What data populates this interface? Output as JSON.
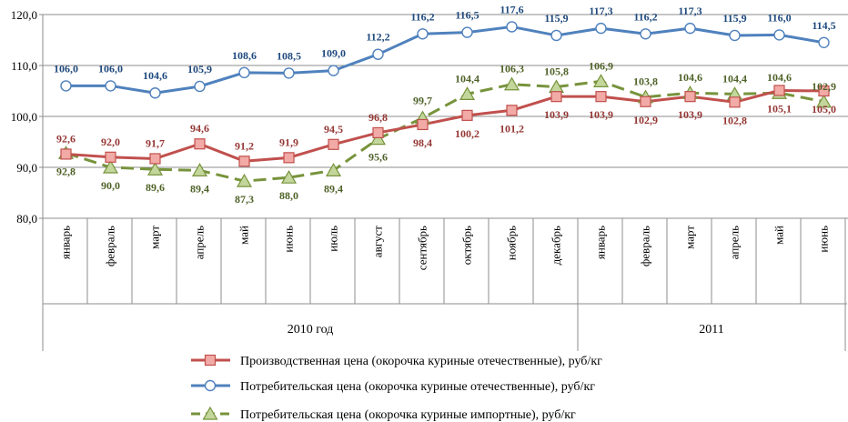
{
  "chart_data": {
    "type": "line",
    "categories": [
      "январь",
      "февраль",
      "март",
      "апрель",
      "май",
      "июнь",
      "июль",
      "август",
      "сентябрь",
      "октябрь",
      "ноябрь",
      "декабрь",
      "январь",
      "февраль",
      "март",
      "апрель",
      "май",
      "июнь"
    ],
    "groups": [
      {
        "label": "2010 год",
        "count": 12
      },
      {
        "label": "2011",
        "count": 6
      }
    ],
    "ylim": [
      80,
      120
    ],
    "yticks": [
      "80,0",
      "90,0",
      "100,0",
      "110,0",
      "120,0"
    ],
    "grid": true,
    "legend_position": "bottom",
    "series": [
      {
        "name": "Производственная цена (окорочка куриные отечественные), руб/кг",
        "values": [
          92.6,
          92.0,
          91.7,
          94.6,
          91.2,
          91.9,
          94.5,
          96.8,
          98.4,
          100.2,
          101.2,
          103.9,
          103.9,
          102.9,
          103.9,
          102.8,
          105.1,
          105.0
        ],
        "labels": [
          "92,6",
          "92,0",
          "91,7",
          "94,6",
          "91,2",
          "91,9",
          "94,5",
          "96,8",
          "98,4",
          "100,2",
          "101,2",
          "103,9",
          "103,9",
          "102,9",
          "103,9",
          "102,8",
          "105,1",
          "105,0"
        ],
        "color": "#c0504d",
        "marker_fill": "#f2aaa6",
        "label_color": "#953735",
        "marker": "square",
        "dash": false
      },
      {
        "name": "Потребительская цена (окорочка куриные отечественные), руб/кг",
        "values": [
          106.0,
          106.0,
          104.6,
          105.9,
          108.6,
          108.5,
          109.0,
          112.2,
          116.2,
          116.5,
          117.6,
          115.9,
          117.3,
          116.2,
          117.3,
          115.9,
          116.0,
          114.5
        ],
        "labels": [
          "106,0",
          "106,0",
          "104,6",
          "105,9",
          "108,6",
          "108,5",
          "109,0",
          "112,2",
          "116,2",
          "116,5",
          "117,6",
          "115,9",
          "117,3",
          "116,2",
          "117,3",
          "115,9",
          "116,0",
          "114,5"
        ],
        "color": "#4f81bd",
        "marker_fill": "#ffffff",
        "label_color": "#1f497d",
        "marker": "circle",
        "dash": false
      },
      {
        "name": "Потребительская цена (окорочка куриные импортные), руб/кг",
        "values": [
          92.8,
          90.0,
          89.6,
          89.4,
          87.3,
          88.0,
          89.4,
          95.6,
          99.7,
          104.4,
          106.3,
          105.8,
          106.9,
          103.8,
          104.6,
          104.4,
          104.6,
          102.9
        ],
        "labels": [
          "92,8",
          "90,0",
          "89,6",
          "89,4",
          "87,3",
          "88,0",
          "89,4",
          "95,6",
          "99,7",
          "104,4",
          "106,3",
          "105,8",
          "106,9",
          "103,8",
          "104,6",
          "104,4",
          "104,6",
          "102,9"
        ],
        "color": "#77933c",
        "marker_fill": "#c3d69b",
        "label_color": "#4f6228",
        "marker": "triangle",
        "dash": true
      }
    ]
  }
}
